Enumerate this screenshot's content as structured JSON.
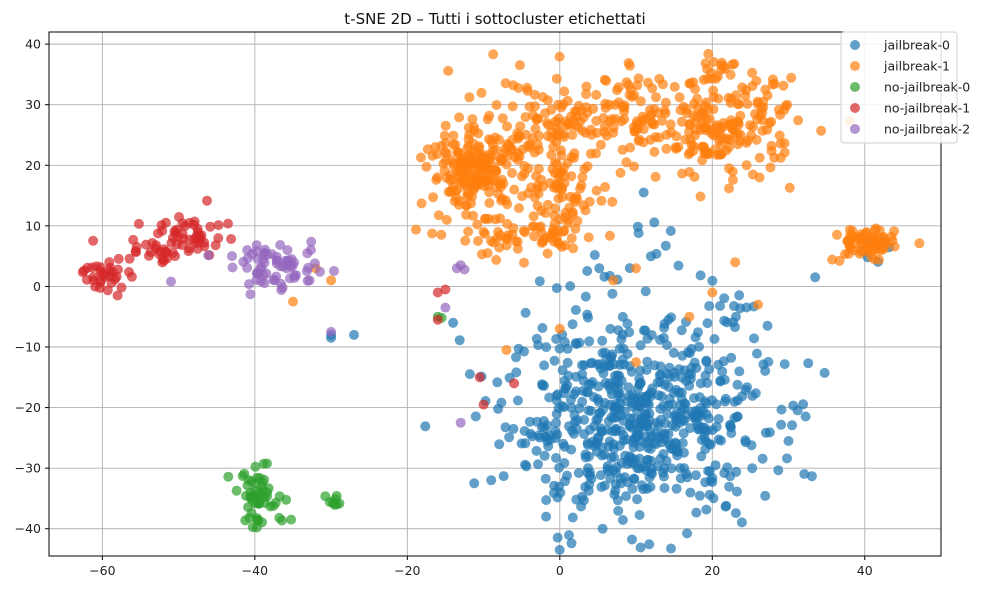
{
  "chart_data": {
    "type": "scatter",
    "title": "t-SNE 2D – Tutti i sottocluster etichettati",
    "xlabel": "",
    "ylabel": "",
    "xlim": [
      -67,
      50
    ],
    "ylim": [
      -44.5,
      42
    ],
    "xticks": [
      -60,
      -40,
      -20,
      0,
      20,
      40
    ],
    "yticks": [
      -40,
      -30,
      -20,
      -10,
      0,
      10,
      20,
      30,
      40
    ],
    "grid": true,
    "legend_position": "top-right",
    "series": [
      {
        "name": "jailbreak-0",
        "color": "#1f77b4",
        "clusters": [
          {
            "cx": 10,
            "cy": -22,
            "sx": 8.5,
            "sy": 8.0,
            "n": 640
          },
          {
            "cx": 6,
            "cy": 1,
            "sx": 2.5,
            "sy": 1.5,
            "n": 10
          },
          {
            "cx": 12,
            "cy": 5,
            "sx": 2.0,
            "sy": 3.0,
            "n": 8
          },
          {
            "cx": 22,
            "cy": -3,
            "sx": 2.0,
            "sy": 1.5,
            "n": 10
          },
          {
            "cx": 41,
            "cy": 5,
            "sx": 1.5,
            "sy": 1.5,
            "n": 6
          }
        ],
        "extra_points": [
          [
            -30,
            -8.5
          ],
          [
            -27,
            -8
          ],
          [
            -14,
            -6
          ],
          [
            -30,
            -8
          ],
          [
            11,
            15.5
          ],
          [
            33.5,
            1.5
          ]
        ]
      },
      {
        "name": "jailbreak-1",
        "color": "#ff7f0e",
        "clusters": [
          {
            "cx": -11,
            "cy": 19,
            "sx": 3.0,
            "sy": 3.0,
            "n": 190
          },
          {
            "cx": -2,
            "cy": 27,
            "sx": 6.0,
            "sy": 4.0,
            "n": 120
          },
          {
            "cx": 10,
            "cy": 28,
            "sx": 5.0,
            "sy": 4.0,
            "n": 90
          },
          {
            "cx": 22,
            "cy": 26,
            "sx": 4.5,
            "sy": 4.0,
            "n": 170
          },
          {
            "cx": 0,
            "cy": 16,
            "sx": 3.0,
            "sy": 2.5,
            "n": 60
          },
          {
            "cx": -4,
            "cy": 8,
            "sx": 5.0,
            "sy": 1.8,
            "n": 70
          },
          {
            "cx": 40,
            "cy": 7,
            "sx": 2.0,
            "sy": 1.5,
            "n": 70
          },
          {
            "cx": 21,
            "cy": 36,
            "sx": 2.0,
            "sy": 1.0,
            "n": 15
          }
        ],
        "extra_points": [
          [
            -32,
            3
          ],
          [
            -30,
            1
          ],
          [
            -35,
            -2.5
          ],
          [
            0,
            -7
          ],
          [
            -7,
            -10.5
          ],
          [
            17,
            -5
          ],
          [
            23,
            4
          ],
          [
            26,
            -3
          ],
          [
            10,
            -12.5
          ],
          [
            7,
            1
          ],
          [
            10,
            3
          ],
          [
            20,
            -1
          ]
        ]
      },
      {
        "name": "no-jailbreak-0",
        "color": "#2ca02c",
        "clusters": [
          {
            "cx": -39,
            "cy": -35,
            "sx": 2.0,
            "sy": 2.4,
            "n": 55
          },
          {
            "cx": -30,
            "cy": -35.5,
            "sx": 0.5,
            "sy": 0.6,
            "n": 8
          }
        ],
        "extra_points": [
          [
            -16,
            -5
          ],
          [
            -15.5,
            -5.2
          ]
        ]
      },
      {
        "name": "no-jailbreak-1",
        "color": "#d62728",
        "clusters": [
          {
            "cx": -59.5,
            "cy": 2,
            "sx": 1.5,
            "sy": 1.2,
            "n": 30
          },
          {
            "cx": -52,
            "cy": 7,
            "sx": 3.0,
            "sy": 2.0,
            "n": 40
          },
          {
            "cx": -47,
            "cy": 9,
            "sx": 1.8,
            "sy": 2.0,
            "n": 30
          }
        ],
        "extra_points": [
          [
            -15,
            -0.5
          ],
          [
            -16,
            -1
          ],
          [
            -16,
            -5.5
          ],
          [
            -10.5,
            -15
          ],
          [
            -10,
            -19.5
          ],
          [
            -6,
            -16
          ],
          [
            -58,
            -1.5
          ]
        ]
      },
      {
        "name": "no-jailbreak-2",
        "color": "#9467bd",
        "clusters": [
          {
            "cx": -37,
            "cy": 3,
            "sx": 3.0,
            "sy": 1.8,
            "n": 65
          }
        ],
        "extra_points": [
          [
            -13.5,
            3
          ],
          [
            -12.5,
            2.8
          ],
          [
            -13,
            3.5
          ],
          [
            -15,
            -3.5
          ],
          [
            -30,
            -7.5
          ],
          [
            -13,
            -22.5
          ],
          [
            -43,
            5
          ],
          [
            -41,
            6
          ],
          [
            -51,
            0.8
          ]
        ]
      }
    ]
  }
}
